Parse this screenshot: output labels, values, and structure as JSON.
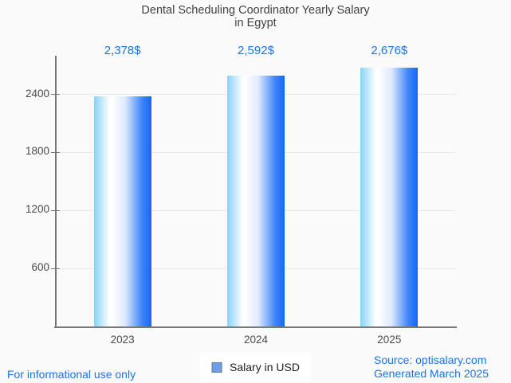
{
  "chart_data": {
    "type": "bar",
    "title": "Dental Scheduling Coordinator Yearly Salary in Egypt",
    "title_lines": [
      "Dental Scheduling Coordinator Yearly Salary",
      "in Egypt"
    ],
    "categories": [
      "2023",
      "2024",
      "2025"
    ],
    "values": [
      2378,
      2592,
      2676
    ],
    "value_labels": [
      "2,378$",
      "2,592$",
      "2,676$"
    ],
    "xlabel": "",
    "ylabel": "",
    "ylim": [
      0,
      2800
    ],
    "yticks": [
      600,
      1200,
      1800,
      2400
    ],
    "grid": "horizontal",
    "legend": {
      "label": "Salary in USD",
      "position": "bottom-center"
    }
  },
  "footer": {
    "disclaimer": "For informational use only",
    "source": "Source: optisalary.com",
    "generated": "Generated March 2025"
  },
  "colors": {
    "background": "#fafafa",
    "title_text": "#424242",
    "axis_line": "#787878",
    "grid_line": "#e9e9e9",
    "tick_label": "#4a4a4a",
    "value_label_blue": "#1a73e8",
    "footer_blue": "#1a73e8",
    "legend_background": "#ffffff",
    "legend_text": "#1f1f1f",
    "legend_marker_fill": "#6d9de4",
    "legend_marker_border": "#5f7b9d",
    "bar_gradient": [
      "#87d3f5",
      "#ffffff",
      "#dfeafd",
      "#4287f8",
      "#1267f8"
    ]
  }
}
